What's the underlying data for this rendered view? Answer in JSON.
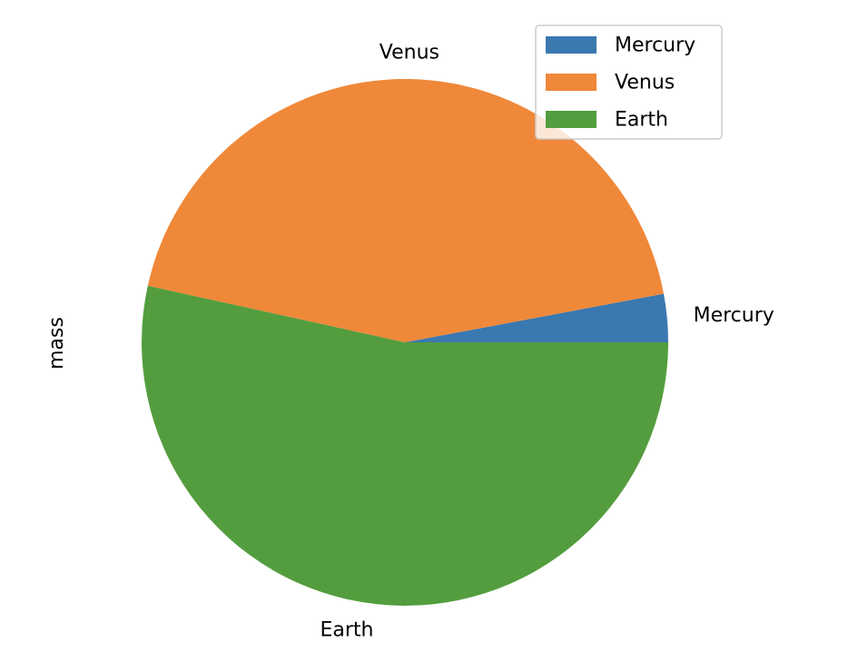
{
  "chart_data": {
    "type": "pie",
    "title": "",
    "ylabel": "mass",
    "categories": [
      "Mercury",
      "Venus",
      "Earth"
    ],
    "values": [
      0.33,
      4.87,
      5.97
    ],
    "colors": [
      "#3a78b0",
      "#ef8839",
      "#539d3e"
    ],
    "start_angle_deg": 0,
    "direction": "counterclockwise",
    "legend": {
      "placement": "top-right",
      "entries": [
        "Mercury",
        "Venus",
        "Earth"
      ]
    }
  }
}
